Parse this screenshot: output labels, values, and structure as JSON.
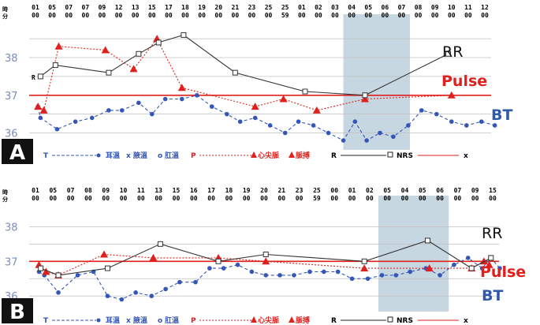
{
  "colors": {
    "bt": "#3456b8",
    "pulse": "#e0201c",
    "rr": "#333333",
    "ref": "#e0201c",
    "shade": "#bcd0dc",
    "grid": "#bfbfbf"
  },
  "chart_data": [
    {
      "panel": "A",
      "type": "line",
      "row_header": [
        "時",
        "分"
      ],
      "tick_labels": [
        [
          "01",
          "00"
        ],
        [
          "05",
          "00"
        ],
        [
          "07",
          "00"
        ],
        [
          "07",
          "00"
        ],
        [
          "09",
          "00"
        ],
        [
          "12",
          "00"
        ],
        [
          "13",
          "00"
        ],
        [
          "15",
          "00"
        ],
        [
          "17",
          "00"
        ],
        [
          "18",
          "00"
        ],
        [
          "19",
          "00"
        ],
        [
          "20",
          "00"
        ],
        [
          "21",
          "00"
        ],
        [
          "23",
          "00"
        ],
        [
          "25",
          "00"
        ],
        [
          "25",
          "59"
        ],
        [
          "01",
          "00"
        ],
        [
          "02",
          "00"
        ],
        [
          "03",
          "00"
        ],
        [
          "04",
          "00"
        ],
        [
          "05",
          "00"
        ],
        [
          "06",
          "00"
        ],
        [
          "07",
          "00"
        ],
        [
          "08",
          "00"
        ],
        [
          "09",
          "00"
        ],
        [
          "10",
          "00"
        ],
        [
          "11",
          "00"
        ],
        [
          "12",
          "00"
        ]
      ],
      "y_ticks": [
        36,
        37,
        38
      ],
      "ylim": [
        35.55,
        38.65
      ],
      "shaded_band": [
        19,
        23
      ],
      "reference_line": 37,
      "series": [
        {
          "name": "BT",
          "style": "dashed-dot",
          "color": "#3456b8",
          "x": [
            0.15,
            0.3,
            1.3,
            2.4,
            3.4,
            4.4,
            5.2,
            6.2,
            7.0,
            7.8,
            8.8,
            9.7,
            10.6,
            11.5,
            12.3,
            13.2,
            14.1,
            15.0,
            15.8,
            16.7,
            17.6,
            18.5,
            19.2,
            19.9,
            20.7,
            21.5,
            22.4,
            23.2,
            24.1,
            25.0,
            25.9,
            26.8,
            27.6
          ],
          "values": [
            36.7,
            36.4,
            36.1,
            36.3,
            36.4,
            36.6,
            36.6,
            36.8,
            36.5,
            36.9,
            36.9,
            37.0,
            36.7,
            36.5,
            36.3,
            36.4,
            36.2,
            36.0,
            36.3,
            36.2,
            36.0,
            35.8,
            36.3,
            35.8,
            36.0,
            35.9,
            36.2,
            36.6,
            36.5,
            36.3,
            36.2,
            36.3,
            36.2
          ]
        },
        {
          "name": "Pulse",
          "style": "dotted-triangle",
          "color": "#e0201c",
          "x": [
            0.15,
            0.5,
            1.4,
            4.2,
            5.9,
            7.3,
            8.8,
            13.2,
            14.9,
            16.9,
            19.8,
            25.0
          ],
          "values": [
            36.7,
            36.6,
            38.3,
            38.2,
            37.7,
            38.5,
            37.2,
            36.7,
            36.9,
            36.6,
            36.9,
            37.0
          ]
        },
        {
          "name": "RR",
          "style": "solid-square",
          "color": "#333333",
          "x": [
            0.3,
            1.2,
            4.4,
            6.2,
            7.4,
            8.9,
            12.0,
            16.2,
            19.8,
            24.8
          ],
          "values": [
            37.5,
            37.8,
            37.6,
            38.1,
            38.4,
            38.6,
            37.6,
            37.1,
            37.0,
            38.1
          ]
        }
      ],
      "annotations": {
        "panel": "A",
        "rr_marker": "R",
        "rr_label": "RR",
        "pulse_label": "Pulse",
        "bt_label": "BT"
      },
      "legend": {
        "t": "T",
        "ear": "耳溫",
        "axilla_x": "x",
        "axilla": "腋溫",
        "rectal_o": "o",
        "rectal": "肛溫",
        "p": "P",
        "apical": "心尖脈",
        "radial": "脈搏",
        "r": "R",
        "nrs": "NRS",
        "x": "x"
      }
    },
    {
      "panel": "B",
      "type": "line",
      "row_header": [
        "時",
        "分"
      ],
      "tick_labels": [
        [
          "01",
          "00"
        ],
        [
          "05",
          "00"
        ],
        [
          "07",
          "00"
        ],
        [
          "08",
          "00"
        ],
        [
          "09",
          "00"
        ],
        [
          "10",
          "00"
        ],
        [
          "11",
          "00"
        ],
        [
          "13",
          "00"
        ],
        [
          "15",
          "00"
        ],
        [
          "16",
          "00"
        ],
        [
          "17",
          "00"
        ],
        [
          "18",
          "00"
        ],
        [
          "19",
          "00"
        ],
        [
          "20",
          "00"
        ],
        [
          "21",
          "00"
        ],
        [
          "23",
          "00"
        ],
        [
          "25",
          "59"
        ],
        [
          "00",
          "00"
        ],
        [
          "01",
          "00"
        ],
        [
          "02",
          "00"
        ],
        [
          "05",
          "00"
        ],
        [
          "04",
          "00"
        ],
        [
          "05",
          "00"
        ],
        [
          "06",
          "00"
        ],
        [
          "07",
          "00"
        ],
        [
          "09",
          "00"
        ],
        [
          "15",
          "00"
        ]
      ],
      "y_ticks": [
        36,
        37,
        38
      ],
      "ylim": [
        35.55,
        38.35
      ],
      "shaded_band": [
        20,
        24
      ],
      "reference_line": 37,
      "series": [
        {
          "name": "BT",
          "style": "dashed-dot",
          "color": "#3456b8",
          "x": [
            0.2,
            0.5,
            1.3,
            2.4,
            3.3,
            4.1,
            4.9,
            5.7,
            6.6,
            7.4,
            8.2,
            9.1,
            9.9,
            10.7,
            11.5,
            12.3,
            13.1,
            13.9,
            14.7,
            15.6,
            16.4,
            17.2,
            18.0,
            18.9,
            19.7,
            20.5,
            21.3,
            22.2,
            23.0,
            23.8,
            24.6,
            25.4,
            25.9,
            26.4
          ],
          "values": [
            36.7,
            36.6,
            36.1,
            36.6,
            36.7,
            36.0,
            35.9,
            36.1,
            36.0,
            36.2,
            36.4,
            36.4,
            36.8,
            36.8,
            36.9,
            36.7,
            36.6,
            36.6,
            36.6,
            36.7,
            36.7,
            36.7,
            36.5,
            36.5,
            36.6,
            36.6,
            36.7,
            36.8,
            36.6,
            36.9,
            37.1,
            36.8,
            37.1,
            36.8
          ]
        },
        {
          "name": "Pulse",
          "style": "dotted-triangle",
          "color": "#e0201c",
          "x": [
            0.2,
            0.6,
            1.3,
            3.9,
            6.7,
            10.4,
            13.1,
            18.7,
            22.4,
            24.8,
            25.5,
            25.8
          ],
          "values": [
            36.9,
            36.7,
            36.6,
            37.2,
            37.1,
            37.1,
            37.0,
            36.8,
            36.8,
            36.8,
            37.0,
            36.9
          ]
        },
        {
          "name": "RR",
          "style": "solid-square",
          "color": "#333333",
          "x": [
            0.3,
            1.3,
            4.1,
            7.1,
            10.4,
            13.1,
            18.7,
            22.3,
            24.8,
            25.9
          ],
          "values": [
            36.8,
            36.6,
            36.8,
            37.5,
            37.0,
            37.2,
            37.0,
            37.6,
            36.8,
            37.1
          ]
        }
      ],
      "annotations": {
        "panel": "B",
        "rr_marker": "",
        "rr_label": "RR",
        "pulse_label": "Pulse",
        "bt_label": "BT"
      },
      "legend": {
        "t": "T",
        "ear": "耳溫",
        "axilla_x": "x",
        "axilla": "腋溫",
        "rectal_o": "o",
        "rectal": "肛溫",
        "p": "P",
        "apical": "心尖脈",
        "radial": "脈搏",
        "r": "R",
        "nrs": "NRS",
        "x": "x"
      }
    }
  ]
}
